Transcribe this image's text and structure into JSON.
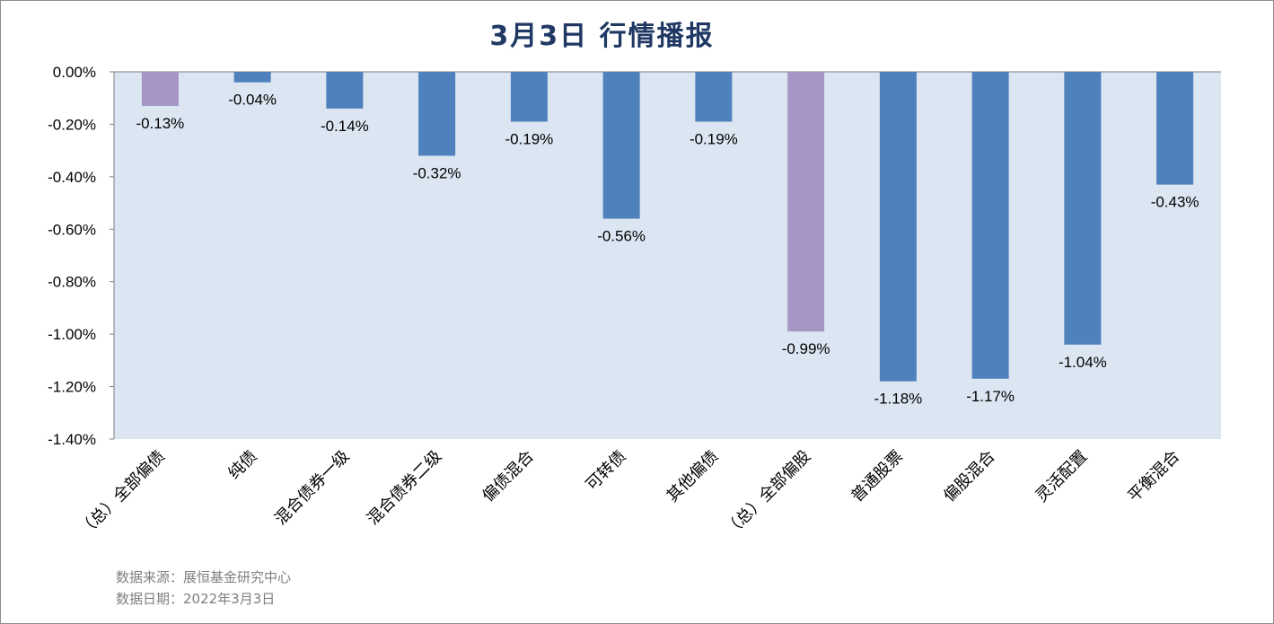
{
  "chart_data": {
    "type": "bar",
    "title": "3月3日  行情播报",
    "categories": [
      "（总）全部偏债",
      "纯债",
      "混合债券一级",
      "混合债券二级",
      "偏债混合",
      "可转债",
      "其他偏债",
      "（总）全部偏股",
      "普通股票",
      "偏股混合",
      "灵活配置",
      "平衡混合"
    ],
    "values": [
      -0.13,
      -0.04,
      -0.14,
      -0.32,
      -0.19,
      -0.56,
      -0.19,
      -0.99,
      -1.18,
      -1.17,
      -1.04,
      -0.43
    ],
    "value_labels": [
      "-0.13%",
      "-0.04%",
      "-0.14%",
      "-0.32%",
      "-0.19%",
      "-0.56%",
      "-0.19%",
      "-0.99%",
      "-1.18%",
      "-1.17%",
      "-1.04%",
      "-0.43%"
    ],
    "highlight": [
      true,
      false,
      false,
      false,
      false,
      false,
      false,
      true,
      false,
      false,
      false,
      false
    ],
    "ylim": [
      -1.4,
      0
    ],
    "yticks": [
      0,
      -0.2,
      -0.4,
      -0.6,
      -0.8,
      -1.0,
      -1.2,
      -1.4
    ],
    "ytick_labels": [
      "0.00%",
      "-0.20%",
      "-0.40%",
      "-0.60%",
      "-0.80%",
      "-1.00%",
      "-1.20%",
      "-1.40%"
    ],
    "grid": false,
    "legend": "none",
    "colors": {
      "bar": "#4f81bd",
      "highlight_bar": "#a596c6",
      "plot_background": "#dce6f2",
      "title": "#1f3864"
    }
  },
  "footer": {
    "source": "数据来源：展恒基金研究中心",
    "date": "数据日期：2022年3月3日"
  }
}
